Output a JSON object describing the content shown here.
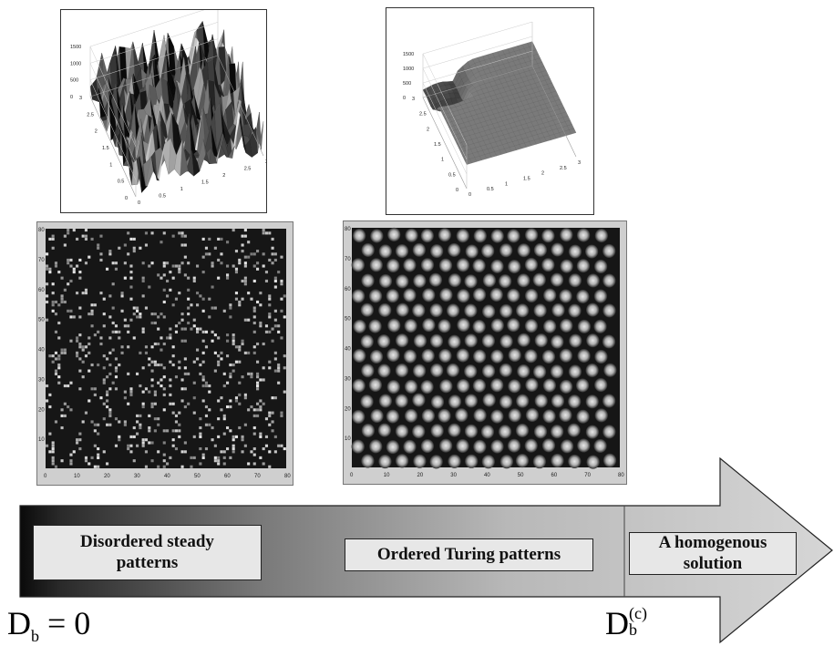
{
  "surface_left": {
    "z_ticks": [
      "1500",
      "1000",
      "500",
      "0"
    ],
    "y_ticks": [
      "3",
      "2.5",
      "2",
      "1.5",
      "1",
      "0.5",
      "0"
    ],
    "x_ticks": [
      "0",
      "0.5",
      "1",
      "1.5",
      "2",
      "2.5",
      "3"
    ]
  },
  "surface_right": {
    "z_ticks": [
      "1500",
      "1000",
      "500",
      "0"
    ],
    "y_ticks": [
      "3",
      "2.5",
      "2",
      "1.5",
      "1",
      "0.5",
      "0"
    ],
    "x_ticks": [
      "0",
      "0.5",
      "1",
      "1.5",
      "2",
      "2.5",
      "3"
    ]
  },
  "pattern_left": {
    "y_ticks": [
      "80",
      "70",
      "60",
      "50",
      "40",
      "30",
      "20",
      "10"
    ],
    "x_ticks": [
      "0",
      "10",
      "20",
      "30",
      "40",
      "50",
      "60",
      "70",
      "80"
    ]
  },
  "pattern_right": {
    "y_ticks": [
      "80",
      "70",
      "60",
      "50",
      "40",
      "30",
      "20",
      "10"
    ],
    "x_ticks": [
      "0",
      "10",
      "20",
      "30",
      "40",
      "50",
      "60",
      "70",
      "80"
    ]
  },
  "arrow": {
    "box_disordered_line1": "Disordered steady",
    "box_disordered_line2": "patterns",
    "box_ordered": "Ordered Turing patterns",
    "box_homogenous_line1": "A homogenous",
    "box_homogenous_line2": "solution"
  },
  "labels": {
    "d_start_base": "D",
    "d_start_sub": "b",
    "d_start_rest": "= 0",
    "d_crit_base": "D",
    "d_crit_sub": "b",
    "d_crit_sup": "(c)"
  }
}
